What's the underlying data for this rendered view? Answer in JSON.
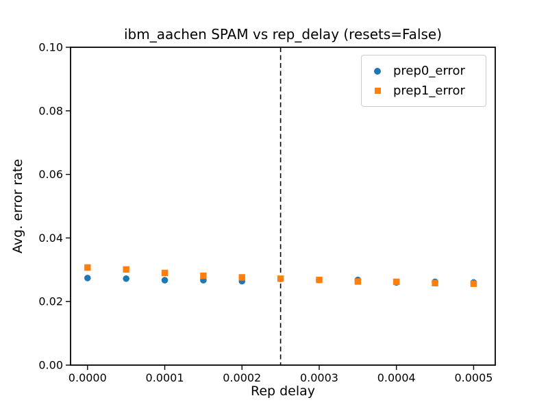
{
  "figure": {
    "background_color": "#ffffff",
    "frame_color": "#000000"
  },
  "chart_data": {
    "type": "scatter",
    "title": "ibm_aachen SPAM vs rep_delay (resets=False)",
    "xlabel": "Rep delay",
    "ylabel": "Avg. error rate",
    "xlim": [
      -2.2e-05,
      0.000528
    ],
    "ylim": [
      0.0,
      0.1
    ],
    "x_ticks": [
      0.0,
      0.0001,
      0.0002,
      0.0003,
      0.0004,
      0.0005
    ],
    "x_ticklabels": [
      "0.0000",
      "0.0001",
      "0.0002",
      "0.0003",
      "0.0004",
      "0.0005"
    ],
    "y_ticks": [
      0.0,
      0.02,
      0.04,
      0.06,
      0.08,
      0.1
    ],
    "y_ticklabels": [
      "0.00",
      "0.02",
      "0.04",
      "0.06",
      "0.08",
      "0.10"
    ],
    "grid": false,
    "x": [
      0.0,
      5e-05,
      0.0001,
      0.00015,
      0.0002,
      0.00025,
      0.0003,
      0.00035,
      0.0004,
      0.00045,
      0.0005
    ],
    "series": [
      {
        "name": "prep0_error",
        "marker": "circle",
        "color": "#1f77b4",
        "values": [
          0.0274,
          0.0272,
          0.0267,
          0.0267,
          0.0264,
          0.0271,
          0.0268,
          0.0268,
          0.026,
          0.0262,
          0.026
        ]
      },
      {
        "name": "prep1_error",
        "marker": "square",
        "color": "#ff7f0e",
        "values": [
          0.0307,
          0.0301,
          0.029,
          0.0281,
          0.0276,
          0.0272,
          0.0268,
          0.0263,
          0.0262,
          0.0258,
          0.0256
        ]
      }
    ],
    "vline": {
      "x": 0.00025,
      "style": "dashed",
      "color": "#000000"
    },
    "legend": {
      "position": "upper right",
      "entries": [
        "prep0_error",
        "prep1_error"
      ]
    }
  }
}
